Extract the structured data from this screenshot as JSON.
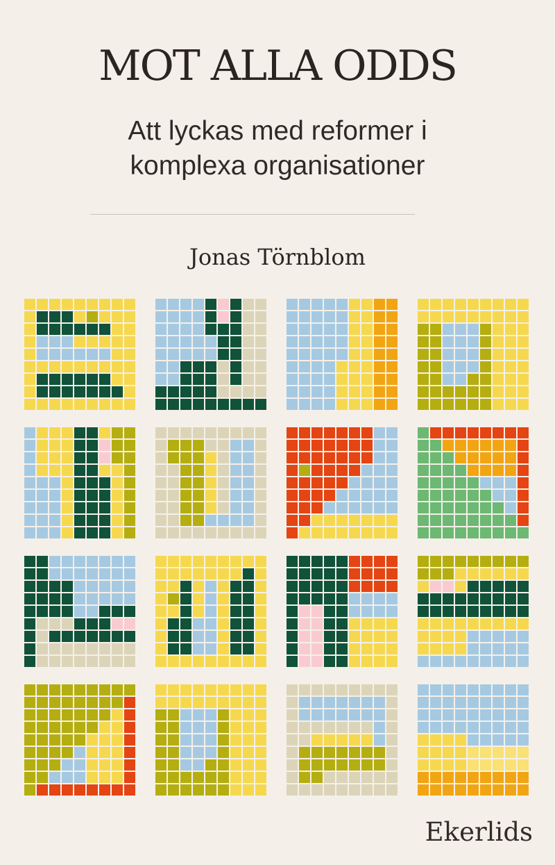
{
  "cover": {
    "title": "MOT ALLA ODDS",
    "subtitle_line1": "Att lyckas med reformer i",
    "subtitle_line2": "komplexa organisationer",
    "author": "Jonas Törnblom",
    "publisher": "Ekerlids",
    "background_color": "#f4f0e9",
    "text_color": "#2b2521"
  },
  "mosaic": {
    "palette": {
      "Y": "#f6d84e",
      "L": "#f9e173",
      "G": "#10523a",
      "B": "#a6c9e2",
      "T": "#dcd4b8",
      "P": "#f9cbd1",
      "O": "#b5ae10",
      "N": "#f2a512",
      "R": "#e54413",
      "M": "#6db873"
    },
    "palette_names": {
      "Y": "yellow",
      "L": "light-yellow",
      "G": "dark-green",
      "B": "light-blue",
      "T": "tan",
      "P": "pink",
      "O": "olive",
      "N": "orange",
      "R": "red",
      "M": "medium-green"
    },
    "tiles": [
      {
        "rows": [
          "YYYYYYYYY",
          "YGGGYOYYY",
          "YGGGGGGYY",
          "YBBBYYYYY",
          "YBBBBBBYY",
          "YYYYYYYYY",
          "YGGGGGGYY",
          "YGGGGGGGY",
          "YYYYYYYYY"
        ]
      },
      {
        "rows": [
          "BBBBGPGTT",
          "BBBBGPGTT",
          "BBBBGGGTT",
          "BBBBBGGTT",
          "BBBBBGGTT",
          "BBGGGTGTT",
          "BBGGGTGTT",
          "GGGGGTTTT",
          "GGGGGGGGG"
        ]
      },
      {
        "rows": [
          "BBBBBYYNN",
          "BBBBBYYNN",
          "BBBBBYYNN",
          "BBBBBYYNN",
          "BBBBBYYNN",
          "BBBBYYYNN",
          "BBBBYYYNN",
          "BBBBYYYNN",
          "BBBBYYYNN"
        ]
      },
      {
        "rows": [
          "YYYYYYYYY",
          "YYYYYYYYY",
          "OOBBBOYYY",
          "OOBBBOYYY",
          "OOBBBOYYY",
          "OOBBBOYYY",
          "OOBBOOYYY",
          "OOOOOOYYY",
          "OOOOOOYYY"
        ]
      },
      {
        "rows": [
          "BYYYGGYOO",
          "BYYYGGPOO",
          "BYYYGGPOO",
          "BYYYGGYYO",
          "BBBYGGGYO",
          "BBBYGGGYO",
          "BBBYGGGYO",
          "BBBYGGGYO",
          "BBBYGGGYO"
        ]
      },
      {
        "rows": [
          "TTTTTTTTT",
          "TOOOTTBBT",
          "TOOOYTBBT",
          "TTOOYTBBT",
          "TTOOYTBBT",
          "TTOOYTBBT",
          "TTOOYTBBT",
          "TTOOBBBBT",
          "TTTTTTTTT"
        ]
      },
      {
        "rows": [
          "RRRRRRRBB",
          "RRRRRRRBB",
          "RRRRRRRBB",
          "RORRRRBBB",
          "RRRRRBBBB",
          "RRRRBBBBB",
          "RRRBBBBBB",
          "RRYYYYYYY",
          "RYYYYYYYY"
        ]
      },
      {
        "rows": [
          "MRRRRRRRR",
          "MMNNNNNNR",
          "MMMNNNNNR",
          "MMMMNNNNR",
          "MMMMMBBBR",
          "MMMMMMBBR",
          "MMMMMMMBR",
          "MMMMMMMMR",
          "MMMMMMMMM"
        ]
      },
      {
        "rows": [
          "GGBBBBBBB",
          "GGBBBBBBB",
          "GGGGBBBBB",
          "GGGGBBBBB",
          "GGGGBBGGG",
          "GTTTGGGPP",
          "GTGGGGGGG",
          "GTTTTTTTT",
          "GTTTTTTTT"
        ]
      },
      {
        "rows": [
          "YYYYYYYYY",
          "YYYYYYYGY",
          "YYGYBYGGY",
          "YOGYBYGGY",
          "YYGYBYGGY",
          "YGGBBYGGY",
          "YGGBBYGGY",
          "YGGBBYGGY",
          "YYYYYYYYY"
        ]
      },
      {
        "rows": [
          "GGGGGRRRR",
          "GGGGGRRRR",
          "GGGGGRRRR",
          "GGGGGBBBB",
          "GPPGGBBBB",
          "GPPGGYYYY",
          "GPPGGYYYY",
          "GPPGGYYYY",
          "GPPGGYYYY"
        ]
      },
      {
        "rows": [
          "OOOOOOOOO",
          "OOOYYYYYY",
          "YPPYGGGGG",
          "GGGGGGGGG",
          "GGGGGGGGG",
          "YYYYYYYYY",
          "YYYYBBBBB",
          "YYYYBBBBB",
          "BBBBBBBBB"
        ]
      },
      {
        "rows": [
          "OOOOOOOOO",
          "OOOOOOOOR",
          "OOOOOOOYR",
          "OOOOOOYYR",
          "OOOOOYYYR",
          "OOOOBYYYR",
          "OOOBBYYYR",
          "OOBBBYYYR",
          "ORRRRRRRR"
        ]
      },
      {
        "rows": [
          "YYYYYYYYY",
          "YYYYYYYYY",
          "OOBBBOYYY",
          "OOBBBOYYY",
          "OOBBBOYYY",
          "OOBBBOYYY",
          "OOBBOOYYY",
          "OOOOOOYYY",
          "OOOOOOYYY"
        ]
      },
      {
        "rows": [
          "TTTTTTTTT",
          "TBBBBBBBT",
          "TBBBBBBBT",
          "TTTTTTTBT",
          "TTYYYYYBT",
          "TOOOOOOOT",
          "TOOOOOOOT",
          "TOOTTTTTT",
          "TTTTTTTTT"
        ]
      },
      {
        "rows": [
          "BBBBBBBBB",
          "BBBBBBBBB",
          "BBBBBBBBB",
          "BBBBBBBBB",
          "YYYYBBBBB",
          "YYYYLLLLL",
          "YYYYLLLLL",
          "NNNNNNNNN",
          "NNNNNNNNN"
        ]
      }
    ]
  }
}
